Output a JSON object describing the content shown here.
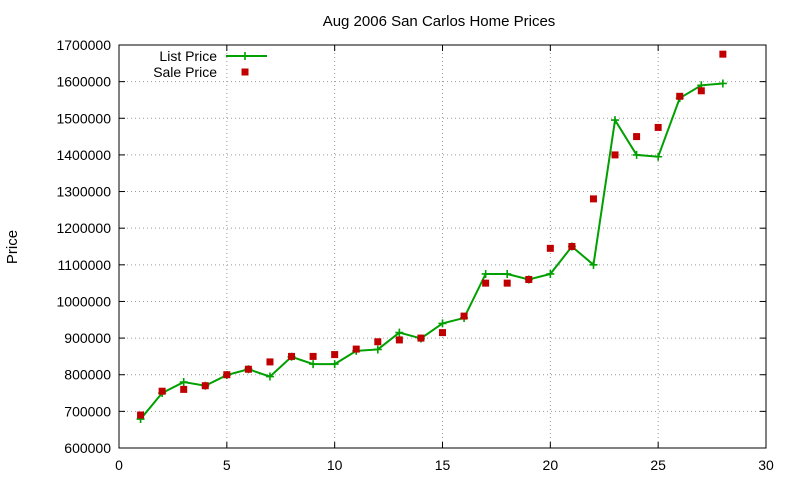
{
  "chart_data": {
    "type": "line",
    "title": "Aug 2006 San Carlos Home Prices",
    "xlabel": "",
    "ylabel": "Price",
    "xlim": [
      0,
      30
    ],
    "ylim": [
      600000,
      1700000
    ],
    "xticks": [
      0,
      5,
      10,
      15,
      20,
      25,
      30
    ],
    "yticks": [
      600000,
      700000,
      800000,
      900000,
      1000000,
      1100000,
      1200000,
      1300000,
      1400000,
      1500000,
      1600000,
      1700000
    ],
    "grid": true,
    "legend": "top-left",
    "series": [
      {
        "name": "List Price",
        "style": "line-plus",
        "color": "#00a000",
        "x": [
          1,
          2,
          3,
          4,
          5,
          6,
          7,
          8,
          9,
          10,
          11,
          12,
          13,
          14,
          15,
          16,
          17,
          18,
          19,
          20,
          21,
          22,
          23,
          24,
          25,
          26,
          27,
          28
        ],
        "y": [
          679000,
          750000,
          780000,
          770000,
          799000,
          815000,
          795000,
          849000,
          829000,
          829000,
          865000,
          869000,
          915000,
          899000,
          940000,
          955000,
          1075000,
          1075000,
          1060000,
          1075000,
          1150000,
          1100000,
          1495000,
          1400000,
          1395000,
          1555000,
          1590000,
          1595000
        ]
      },
      {
        "name": "Sale Price",
        "style": "square",
        "color": "#c00000",
        "x": [
          1,
          2,
          3,
          4,
          5,
          6,
          7,
          8,
          9,
          10,
          11,
          12,
          13,
          14,
          15,
          16,
          17,
          18,
          19,
          20,
          21,
          22,
          23,
          24,
          25,
          26,
          27,
          28
        ],
        "y": [
          690000,
          755000,
          760000,
          770000,
          800000,
          815000,
          835000,
          850000,
          850000,
          855000,
          870000,
          890000,
          895000,
          900000,
          915000,
          960000,
          1050000,
          1050000,
          1060000,
          1145000,
          1150000,
          1280000,
          1400000,
          1450000,
          1475000,
          1560000,
          1575000,
          1675000
        ]
      }
    ]
  }
}
